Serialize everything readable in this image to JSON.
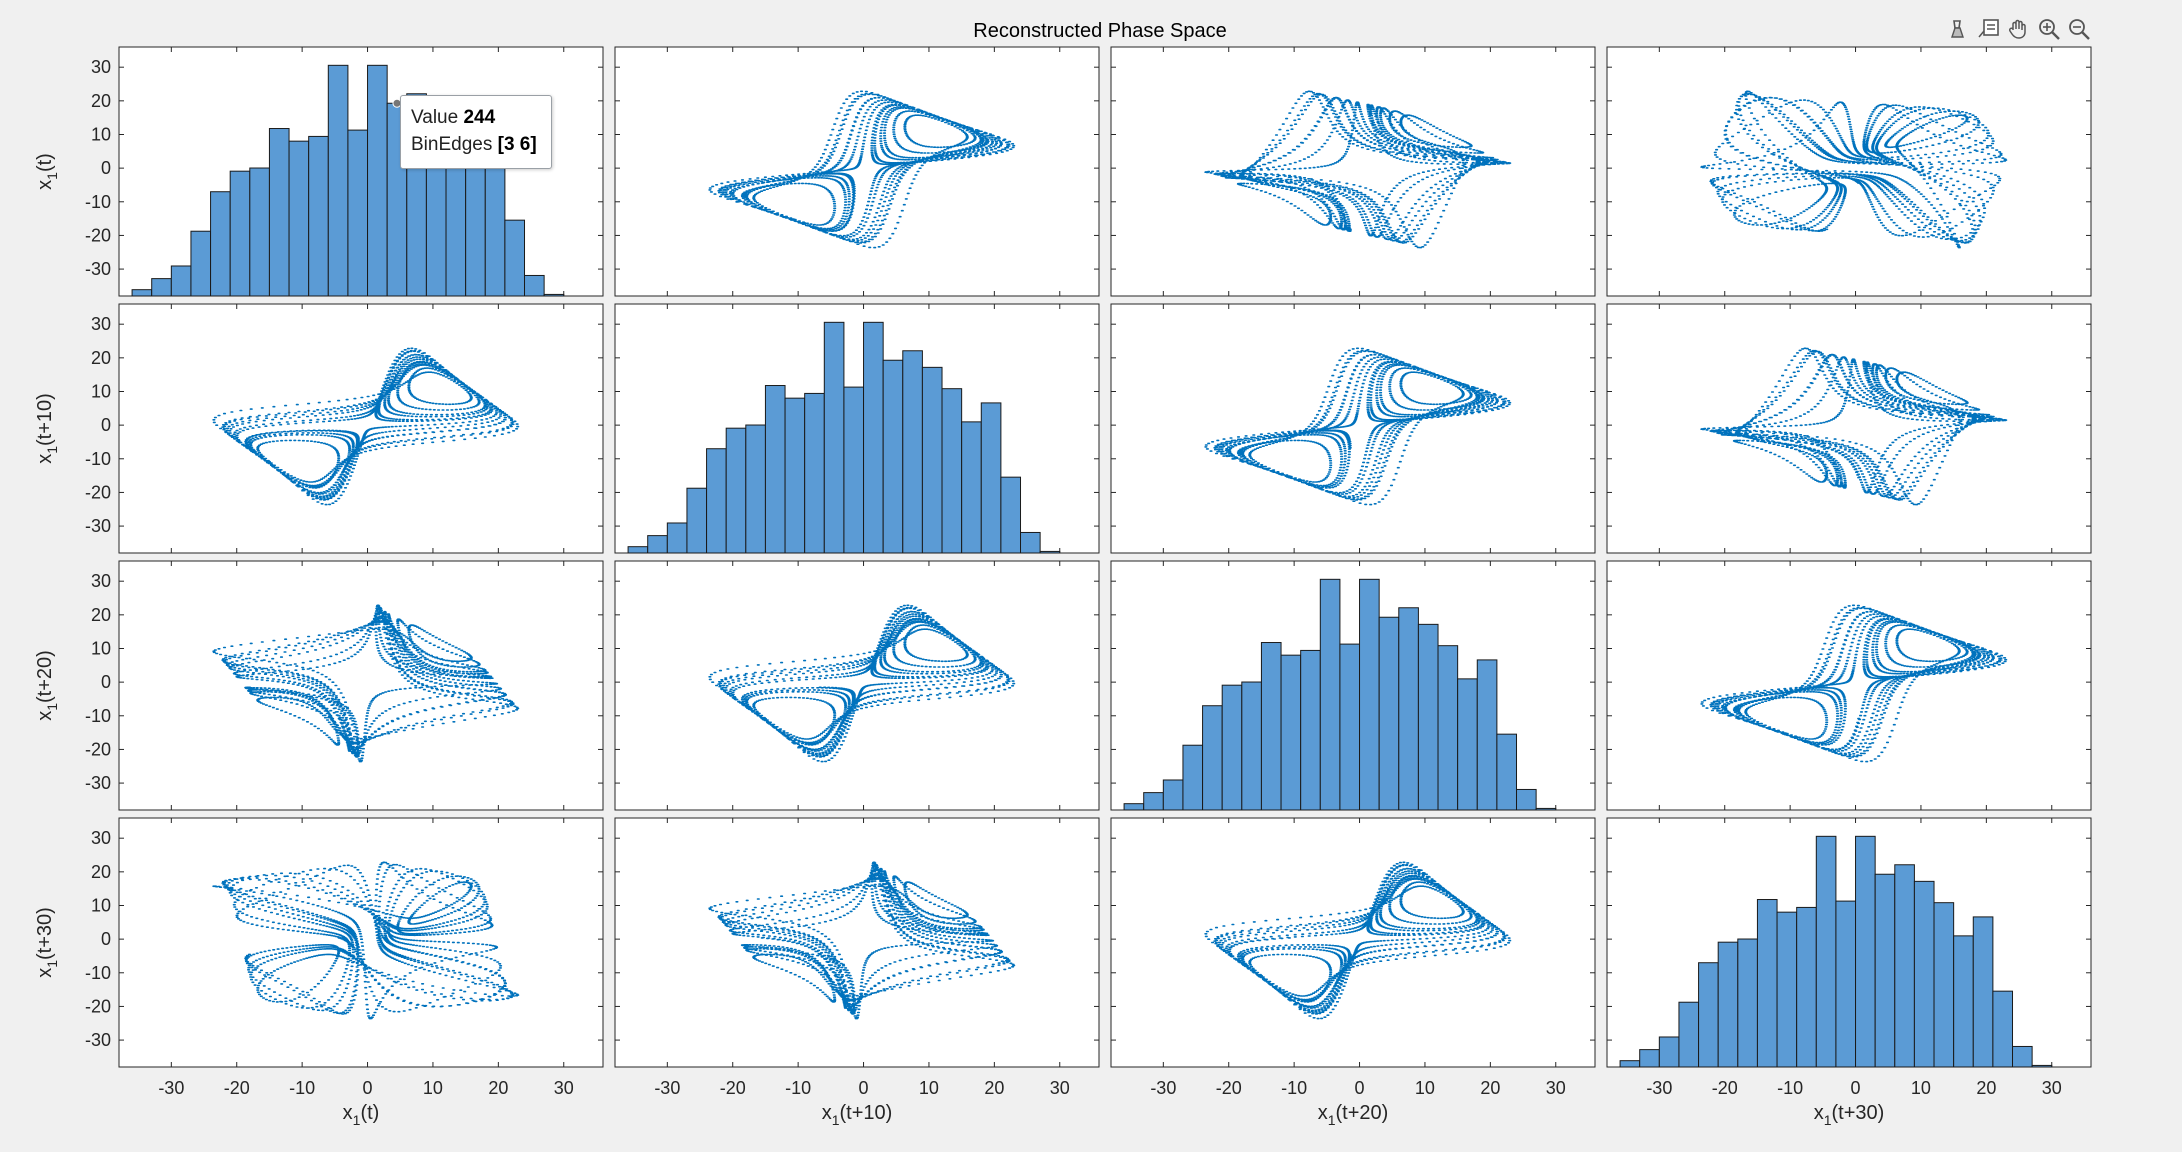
{
  "figure": {
    "title": "Reconstructed Phase Space",
    "variables": [
      "x1(t)",
      "x1(t+10)",
      "x1(t+20)",
      "x1(t+30)"
    ],
    "xlabel_parts": [
      {
        "base": "x",
        "sub": "1",
        "rest": "(t)"
      },
      {
        "base": "x",
        "sub": "1",
        "rest": "(t+10)"
      },
      {
        "base": "x",
        "sub": "1",
        "rest": "(t+20)"
      },
      {
        "base": "x",
        "sub": "1",
        "rest": "(t+30)"
      }
    ],
    "xticks": [
      -30,
      -20,
      -10,
      0,
      10,
      20,
      30
    ],
    "yticks": [
      30,
      20,
      10,
      0,
      -10,
      -20,
      -30
    ],
    "colors": {
      "bar_fill": "#5b9bd5",
      "bar_edge": "#1a1a1a",
      "scatter": "#0072bd",
      "axes_bg": "#ffffff",
      "figure_bg": "#f0f0f0"
    }
  },
  "toolbar": {
    "icons": [
      "brush-icon",
      "datatip-icon",
      "pan-icon",
      "zoom-in-icon",
      "zoom-out-icon"
    ]
  },
  "datatip": {
    "value_label": "Value",
    "value": "244",
    "edges_label": "BinEdges",
    "edges": "[3 6]"
  },
  "chart_data": {
    "type": "scatter",
    "title": "Reconstructed Phase Space",
    "layout": "4x4 scatter-plot matrix with histograms on the diagonal",
    "xlim": [
      -38,
      36
    ],
    "ylim": [
      -38,
      36
    ],
    "histogram": {
      "bin_edges": [
        -36,
        -33,
        -30,
        -27,
        -24,
        -21,
        -18,
        -15,
        -12,
        -9,
        -6,
        -3,
        0,
        3,
        6,
        9,
        12,
        15,
        18,
        21,
        24,
        27,
        30
      ],
      "counts": [
        8,
        22,
        38,
        82,
        132,
        158,
        162,
        212,
        196,
        202,
        292,
        210,
        292,
        244,
        256,
        235,
        208,
        166,
        190,
        96,
        26,
        2
      ],
      "note": "counts approximate; same distribution on all four diagonal panels"
    },
    "scatter": {
      "point_count": 1800,
      "note": "lagged Lorenz-type attractor; two lobes centred near (-13,-13) and (13,13)"
    }
  }
}
